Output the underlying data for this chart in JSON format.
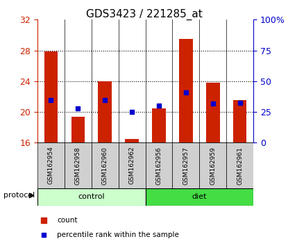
{
  "title": "GDS3423 / 221285_at",
  "samples": [
    "GSM162954",
    "GSM162958",
    "GSM162960",
    "GSM162962",
    "GSM162956",
    "GSM162957",
    "GSM162959",
    "GSM162961"
  ],
  "red_values": [
    27.9,
    19.4,
    24.0,
    16.5,
    20.5,
    29.5,
    23.8,
    21.5
  ],
  "blue_values": [
    21.5,
    20.5,
    21.5,
    20.0,
    20.8,
    22.5,
    21.1,
    21.2
  ],
  "ylim": [
    16,
    32
  ],
  "yticks": [
    16,
    20,
    24,
    28,
    32
  ],
  "right_tick_positions": [
    16,
    20,
    24,
    28,
    32
  ],
  "right_yticklabels": [
    "0",
    "25",
    "50",
    "75",
    "100%"
  ],
  "control_color": "#ccffcc",
  "diet_color": "#44dd44",
  "bar_color": "#cc2200",
  "blue_color": "#0000cc",
  "title_fontsize": 11,
  "axis_color_left": "#cc2200",
  "axis_color_right": "#0000cc",
  "label_bg_color": "#d0d0d0"
}
